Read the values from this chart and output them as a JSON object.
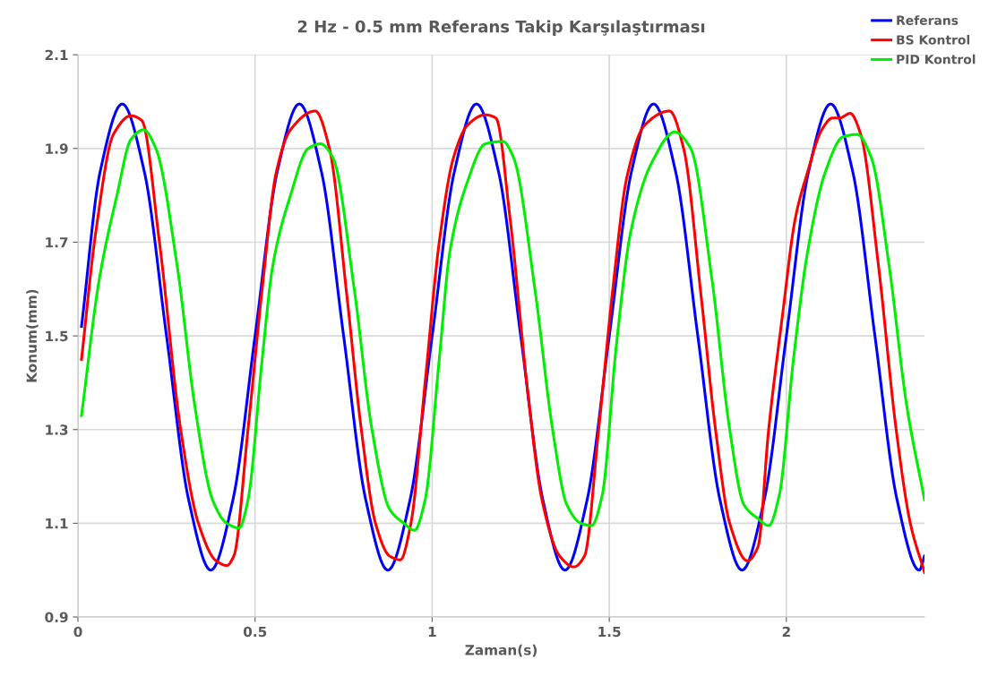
{
  "chart_data": {
    "type": "line",
    "title": "2 Hz - 0.5 mm Referans Takip Karşılaştırması",
    "xlabel": "Zaman(s)",
    "ylabel": "Konum(mm)",
    "xlim": [
      0,
      2.39
    ],
    "xticks": [
      0,
      0.5,
      1,
      1.5,
      2
    ],
    "ylim": [
      0.9,
      2.1
    ],
    "yticks": [
      0.9,
      1.1,
      1.3,
      1.5,
      1.7,
      1.9,
      2.1
    ],
    "grid": true,
    "legend": "top right",
    "marker": "none",
    "line_style": "solid",
    "series": [
      {
        "name": "Referans",
        "color": "#0000ff",
        "x": [
          0.01,
          0.0625,
          0.125,
          0.1875,
          0.25,
          0.3125,
          0.375,
          0.4375,
          0.5,
          0.5625,
          0.625,
          0.6875,
          0.75,
          0.8125,
          0.875,
          0.9375,
          1.0,
          1.0625,
          1.125,
          1.1875,
          1.25,
          1.3125,
          1.375,
          1.4375,
          1.5,
          1.5625,
          1.625,
          1.6875,
          1.75,
          1.8125,
          1.875,
          1.9375,
          2.0,
          2.0625,
          2.125,
          2.1875,
          2.25,
          2.3125,
          2.375,
          2.39
        ],
        "values": [
          1.52,
          1.85,
          1.995,
          1.85,
          1.5,
          1.15,
          1.0,
          1.15,
          1.5,
          1.85,
          1.995,
          1.85,
          1.5,
          1.15,
          1.0,
          1.15,
          1.5,
          1.85,
          1.995,
          1.85,
          1.5,
          1.15,
          1.0,
          1.15,
          1.5,
          1.85,
          1.995,
          1.85,
          1.5,
          1.15,
          1.0,
          1.15,
          1.5,
          1.85,
          1.995,
          1.85,
          1.5,
          1.15,
          1.0,
          1.03
        ]
      },
      {
        "name": "BS Kontrol",
        "color": "#ff0000",
        "x": [
          0.01,
          0.05,
          0.1,
          0.15,
          0.18,
          0.23,
          0.29,
          0.34,
          0.39,
          0.42,
          0.44,
          0.48,
          0.52,
          0.56,
          0.6,
          0.67,
          0.71,
          0.76,
          0.8,
          0.84,
          0.88,
          0.91,
          0.94,
          0.98,
          1.02,
          1.06,
          1.1,
          1.15,
          1.18,
          1.22,
          1.27,
          1.31,
          1.36,
          1.4,
          1.43,
          1.47,
          1.51,
          1.55,
          1.6,
          1.67,
          1.71,
          1.76,
          1.8,
          1.84,
          1.89,
          1.92,
          1.95,
          1.99,
          2.025,
          2.06,
          2.1,
          2.13,
          2.15,
          2.18,
          2.21,
          2.26,
          2.31,
          2.35,
          2.39
        ],
        "values": [
          1.45,
          1.72,
          1.93,
          1.97,
          1.96,
          1.7,
          1.3,
          1.1,
          1.02,
          1.01,
          1.03,
          1.3,
          1.6,
          1.85,
          1.94,
          1.98,
          1.9,
          1.58,
          1.3,
          1.1,
          1.03,
          1.022,
          1.1,
          1.4,
          1.7,
          1.88,
          1.95,
          1.972,
          1.965,
          1.75,
          1.38,
          1.15,
          1.03,
          1.007,
          1.03,
          1.3,
          1.6,
          1.84,
          1.95,
          1.98,
          1.9,
          1.58,
          1.3,
          1.1,
          1.02,
          1.05,
          1.3,
          1.55,
          1.75,
          1.85,
          1.94,
          1.965,
          1.965,
          1.975,
          1.93,
          1.65,
          1.3,
          1.1,
          0.995
        ]
      },
      {
        "name": "PID Kontrol",
        "color": "#00ee00",
        "x": [
          0.01,
          0.06,
          0.11,
          0.15,
          0.185,
          0.22,
          0.28,
          0.33,
          0.38,
          0.42,
          0.455,
          0.48,
          0.52,
          0.55,
          0.6,
          0.65,
          0.685,
          0.72,
          0.78,
          0.83,
          0.88,
          0.92,
          0.95,
          0.98,
          1.02,
          1.05,
          1.1,
          1.15,
          1.2,
          1.23,
          1.29,
          1.34,
          1.38,
          1.42,
          1.45,
          1.48,
          1.52,
          1.56,
          1.62,
          1.685,
          1.73,
          1.79,
          1.84,
          1.88,
          1.92,
          1.95,
          1.98,
          2.02,
          2.06,
          2.11,
          2.16,
          2.2,
          2.24,
          2.29,
          2.34,
          2.39
        ],
        "values": [
          1.33,
          1.62,
          1.8,
          1.92,
          1.94,
          1.9,
          1.65,
          1.35,
          1.15,
          1.1,
          1.09,
          1.15,
          1.45,
          1.65,
          1.8,
          1.9,
          1.91,
          1.88,
          1.6,
          1.3,
          1.13,
          1.1,
          1.085,
          1.15,
          1.45,
          1.68,
          1.83,
          1.91,
          1.915,
          1.88,
          1.6,
          1.3,
          1.14,
          1.1,
          1.095,
          1.16,
          1.48,
          1.72,
          1.87,
          1.935,
          1.9,
          1.62,
          1.3,
          1.14,
          1.11,
          1.095,
          1.16,
          1.45,
          1.68,
          1.85,
          1.925,
          1.93,
          1.88,
          1.65,
          1.35,
          1.15
        ]
      }
    ]
  }
}
